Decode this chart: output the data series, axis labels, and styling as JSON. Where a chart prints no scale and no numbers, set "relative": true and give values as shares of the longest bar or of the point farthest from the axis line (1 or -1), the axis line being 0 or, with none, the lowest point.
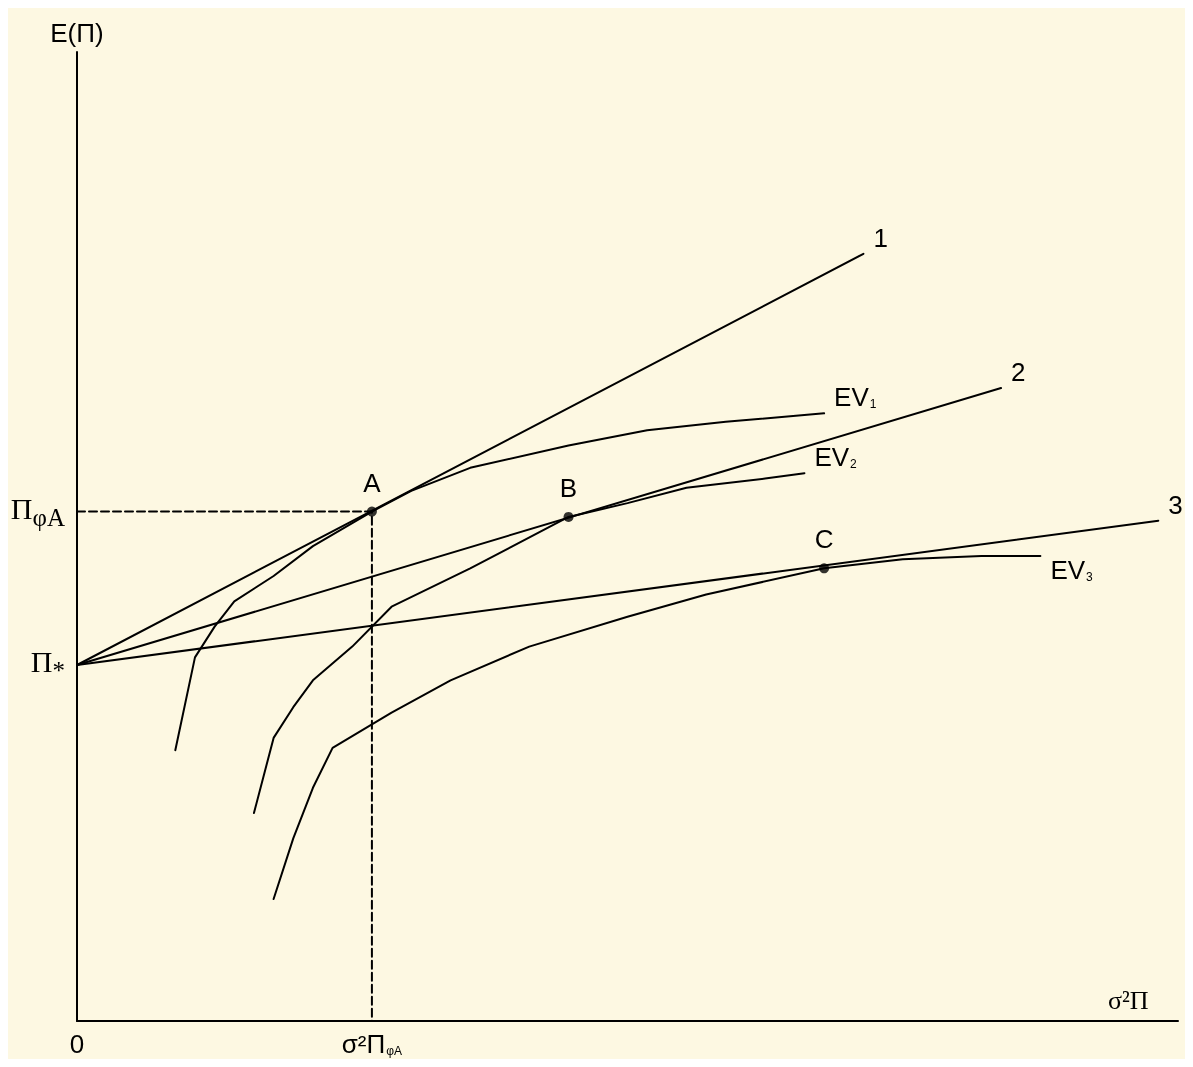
{
  "chart_data": {
    "type": "line",
    "relative": true,
    "xlabel": "σ²Π",
    "grid": false,
    "legend": false,
    "marker": "none",
    "tick_labels": "x",
    "categories": [
      "0",
      null,
      null,
      null,
      null,
      null,
      null,
      null,
      null,
      null,
      null,
      null,
      null,
      null,
      null,
      "σ²Π$_{φA}$",
      null,
      null,
      null,
      null,
      null,
      null,
      null,
      null,
      null,
      null,
      null,
      null,
      null,
      null,
      null,
      null,
      null,
      null,
      null,
      null,
      null,
      null,
      null,
      null,
      null,
      null,
      null,
      null,
      null,
      null,
      null,
      null,
      null,
      null,
      null,
      null,
      null,
      null,
      null,
      null,
      null
    ],
    "series": [
      {
        "name": "1",
        "color": "#000000",
        "values": [
          0.464,
          null,
          null,
          null,
          null,
          null,
          null,
          null,
          null,
          null,
          null,
          null,
          null,
          null,
          null,
          null,
          null,
          null,
          null,
          null,
          null,
          null,
          null,
          null,
          null,
          null,
          null,
          null,
          null,
          null,
          null,
          null,
          null,
          null,
          null,
          null,
          null,
          null,
          null,
          null,
          1.0,
          null,
          null,
          null,
          null,
          null,
          null,
          null,
          null,
          null,
          null,
          null,
          null,
          null,
          null,
          null,
          null
        ]
      },
      {
        "name": "2",
        "color": "#000000",
        "values": [
          0.464,
          null,
          null,
          null,
          null,
          null,
          null,
          null,
          null,
          null,
          null,
          null,
          null,
          null,
          null,
          null,
          null,
          null,
          null,
          null,
          null,
          null,
          null,
          null,
          null,
          null,
          null,
          null,
          null,
          null,
          null,
          null,
          null,
          null,
          null,
          null,
          null,
          null,
          null,
          null,
          null,
          null,
          null,
          null,
          null,
          null,
          null,
          0.825,
          null,
          null,
          null,
          null,
          null,
          null,
          null,
          null,
          null
        ]
      },
      {
        "name": "3",
        "color": "#000000",
        "values": [
          0.464,
          null,
          null,
          null,
          null,
          null,
          null,
          null,
          null,
          null,
          null,
          null,
          null,
          null,
          null,
          null,
          null,
          null,
          null,
          null,
          null,
          null,
          null,
          null,
          null,
          null,
          null,
          null,
          null,
          null,
          null,
          null,
          null,
          null,
          null,
          null,
          null,
          null,
          null,
          null,
          null,
          null,
          null,
          null,
          null,
          null,
          null,
          null,
          null,
          null,
          null,
          null,
          null,
          null,
          null,
          0.652,
          null
        ]
      },
      {
        "name": "EV$_{1}$",
        "color": "#000000",
        "values": [
          null,
          null,
          null,
          null,
          null,
          0.353,
          0.474,
          0.514,
          0.547,
          null,
          0.58,
          null,
          0.619,
          null,
          null,
          0.664,
          null,
          0.691,
          null,
          null,
          0.721,
          null,
          null,
          null,
          null,
          0.75,
          null,
          null,
          null,
          0.77,
          null,
          null,
          null,
          0.781,
          null,
          null,
          null,
          null,
          0.792,
          null,
          null,
          null,
          null,
          null,
          null,
          null,
          null,
          null,
          null,
          null,
          null,
          null,
          null,
          null,
          null,
          null,
          null
        ]
      },
      {
        "name": "EV$_{2}$",
        "color": "#000000",
        "values": [
          null,
          null,
          null,
          null,
          null,
          null,
          null,
          null,
          null,
          0.271,
          0.369,
          0.409,
          0.444,
          null,
          0.488,
          null,
          0.54,
          null,
          null,
          null,
          0.59,
          null,
          null,
          null,
          null,
          0.657,
          null,
          null,
          0.675,
          null,
          null,
          0.695,
          null,
          null,
          null,
          0.707,
          null,
          0.714,
          null,
          null,
          null,
          null,
          null,
          null,
          null,
          null,
          null,
          null,
          null,
          null,
          null,
          null,
          null,
          null,
          null,
          null,
          null
        ]
      },
      {
        "name": "EV$_{3}$",
        "color": "#000000",
        "values": [
          null,
          null,
          null,
          null,
          null,
          null,
          null,
          null,
          null,
          null,
          0.159,
          0.238,
          0.304,
          0.356,
          null,
          null,
          0.402,
          null,
          null,
          0.444,
          null,
          null,
          null,
          0.488,
          null,
          null,
          null,
          null,
          0.527,
          null,
          null,
          null,
          0.556,
          null,
          null,
          null,
          null,
          null,
          0.59,
          null,
          null,
          null,
          0.602,
          null,
          null,
          null,
          0.606,
          null,
          null,
          0.606,
          null,
          null,
          null,
          null,
          null,
          null,
          null
        ]
      },
      {
        "color": "#000000",
        "line_style": "dashed",
        "x": [
          "0",
          "σ²Π$_{φA}$",
          "σ²Π$_{φA}$"
        ],
        "values": [
          0.664,
          0.664,
          0
        ]
      },
      {
        "type": "scatter",
        "marker": "circle",
        "color": "#000000",
        "values": [
          null,
          null,
          null,
          null,
          null,
          null,
          null,
          null,
          null,
          null,
          null,
          null,
          null,
          null,
          null,
          0.664,
          null,
          null,
          null,
          null,
          null,
          null,
          null,
          null,
          null,
          0.657,
          null,
          null,
          null,
          null,
          null,
          null,
          null,
          null,
          null,
          null,
          null,
          null,
          0.59,
          null,
          null,
          null,
          null,
          null,
          null,
          null,
          null,
          null,
          null,
          null,
          null,
          null,
          null,
          null,
          null,
          null,
          null
        ]
      }
    ],
    "annotations": [
      "E(Π)",
      {
        "text": "A",
        "x": "σ²Π$_{φA}$",
        "y": 0.664
      },
      {
        "text": "B",
        "y": 0.657
      },
      {
        "text": "C",
        "y": 0.59
      },
      {
        "text": "Π$_{φA}$",
        "x": "0",
        "y": 0.664
      },
      {
        "text": "Π$_{*}$",
        "x": "0",
        "y": 0.464
      }
    ]
  }
}
